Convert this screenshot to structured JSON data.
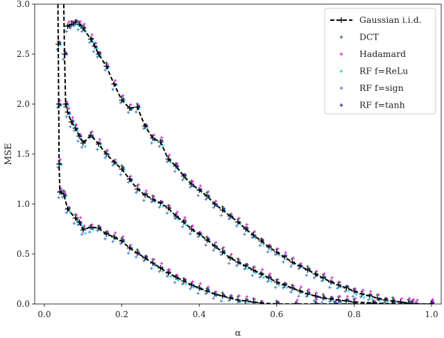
{
  "chart_data": {
    "type": "scatter",
    "title": "",
    "xlabel": "α",
    "ylabel": "MSE",
    "xlim": [
      -0.025,
      1.025
    ],
    "ylim": [
      0,
      3.0
    ],
    "xticks": [
      "0.0",
      "0.2",
      "0.4",
      "0.6",
      "0.8",
      "1.0"
    ],
    "yticks": [
      "0.0",
      "0.5",
      "1.0",
      "1.5",
      "2.0",
      "2.5",
      "3.0"
    ],
    "grid": false,
    "legend_position": "top-right",
    "series": [
      {
        "name": "Gaussian i.i.d.",
        "style": "dashed-line-plus",
        "color": "#000000",
        "curves": [
          [
            [
              0.035,
              3.0
            ],
            [
              0.036,
              2.6
            ],
            [
              0.037,
              2.0
            ],
            [
              0.038,
              1.4
            ],
            [
              0.04,
              1.12
            ],
            [
              0.05,
              1.1
            ],
            [
              0.06,
              0.95
            ],
            [
              0.08,
              0.86
            ],
            [
              0.09,
              0.82
            ],
            [
              0.1,
              0.74
            ],
            [
              0.12,
              0.77
            ],
            [
              0.14,
              0.76
            ],
            [
              0.16,
              0.7
            ],
            [
              0.18,
              0.67
            ],
            [
              0.2,
              0.63
            ],
            [
              0.22,
              0.56
            ],
            [
              0.24,
              0.51
            ],
            [
              0.26,
              0.46
            ],
            [
              0.28,
              0.41
            ],
            [
              0.3,
              0.36
            ],
            [
              0.32,
              0.31
            ],
            [
              0.34,
              0.27
            ],
            [
              0.36,
              0.23
            ],
            [
              0.38,
              0.19
            ],
            [
              0.4,
              0.16
            ],
            [
              0.42,
              0.13
            ],
            [
              0.44,
              0.1
            ],
            [
              0.46,
              0.08
            ],
            [
              0.48,
              0.06
            ],
            [
              0.5,
              0.04
            ],
            [
              0.52,
              0.03
            ],
            [
              0.54,
              0.02
            ],
            [
              0.56,
              0.01
            ],
            [
              0.6,
              0.0
            ],
            [
              0.65,
              0.0
            ],
            [
              0.7,
              0.0
            ],
            [
              0.75,
              0.0
            ],
            [
              0.8,
              0.0
            ],
            [
              0.85,
              0.0
            ],
            [
              0.9,
              0.0
            ],
            [
              0.95,
              0.0
            ],
            [
              1.0,
              0.0
            ]
          ],
          [
            [
              0.05,
              3.0
            ],
            [
              0.052,
              2.5
            ],
            [
              0.055,
              2.0
            ],
            [
              0.06,
              1.92
            ],
            [
              0.07,
              1.82
            ],
            [
              0.08,
              1.76
            ],
            [
              0.09,
              1.68
            ],
            [
              0.1,
              1.61
            ],
            [
              0.12,
              1.69
            ],
            [
              0.14,
              1.6
            ],
            [
              0.16,
              1.5
            ],
            [
              0.18,
              1.42
            ],
            [
              0.2,
              1.35
            ],
            [
              0.22,
              1.25
            ],
            [
              0.24,
              1.15
            ],
            [
              0.26,
              1.09
            ],
            [
              0.28,
              1.05
            ],
            [
              0.3,
              1.01
            ],
            [
              0.32,
              0.96
            ],
            [
              0.34,
              0.88
            ],
            [
              0.36,
              0.82
            ],
            [
              0.38,
              0.75
            ],
            [
              0.4,
              0.7
            ],
            [
              0.42,
              0.64
            ],
            [
              0.44,
              0.58
            ],
            [
              0.46,
              0.52
            ],
            [
              0.48,
              0.46
            ],
            [
              0.5,
              0.42
            ],
            [
              0.52,
              0.38
            ],
            [
              0.54,
              0.34
            ],
            [
              0.56,
              0.3
            ],
            [
              0.58,
              0.26
            ],
            [
              0.6,
              0.22
            ],
            [
              0.62,
              0.19
            ],
            [
              0.64,
              0.16
            ],
            [
              0.66,
              0.13
            ],
            [
              0.68,
              0.1
            ],
            [
              0.7,
              0.08
            ],
            [
              0.72,
              0.06
            ],
            [
              0.74,
              0.05
            ],
            [
              0.76,
              0.04
            ],
            [
              0.78,
              0.03
            ],
            [
              0.8,
              0.02
            ],
            [
              0.85,
              0.01
            ],
            [
              0.9,
              0.0
            ],
            [
              0.95,
              0.0
            ],
            [
              1.0,
              0.0
            ]
          ],
          [
            [
              0.06,
              2.78
            ],
            [
              0.07,
              2.8
            ],
            [
              0.08,
              2.82
            ],
            [
              0.09,
              2.8
            ],
            [
              0.1,
              2.76
            ],
            [
              0.12,
              2.65
            ],
            [
              0.13,
              2.58
            ],
            [
              0.14,
              2.5
            ],
            [
              0.16,
              2.38
            ],
            [
              0.18,
              2.2
            ],
            [
              0.2,
              2.04
            ],
            [
              0.22,
              1.96
            ],
            [
              0.24,
              1.97
            ],
            [
              0.26,
              1.78
            ],
            [
              0.28,
              1.66
            ],
            [
              0.3,
              1.62
            ],
            [
              0.32,
              1.45
            ],
            [
              0.34,
              1.38
            ],
            [
              0.36,
              1.28
            ],
            [
              0.38,
              1.2
            ],
            [
              0.4,
              1.14
            ],
            [
              0.42,
              1.08
            ],
            [
              0.44,
              1.0
            ],
            [
              0.46,
              0.94
            ],
            [
              0.48,
              0.88
            ],
            [
              0.5,
              0.82
            ],
            [
              0.52,
              0.75
            ],
            [
              0.54,
              0.69
            ],
            [
              0.56,
              0.63
            ],
            [
              0.58,
              0.57
            ],
            [
              0.6,
              0.52
            ],
            [
              0.62,
              0.47
            ],
            [
              0.64,
              0.42
            ],
            [
              0.66,
              0.38
            ],
            [
              0.68,
              0.34
            ],
            [
              0.7,
              0.3
            ],
            [
              0.72,
              0.26
            ],
            [
              0.74,
              0.22
            ],
            [
              0.76,
              0.19
            ],
            [
              0.78,
              0.16
            ],
            [
              0.8,
              0.13
            ],
            [
              0.82,
              0.1
            ],
            [
              0.84,
              0.08
            ],
            [
              0.86,
              0.06
            ],
            [
              0.88,
              0.04
            ],
            [
              0.9,
              0.03
            ],
            [
              0.92,
              0.02
            ],
            [
              0.94,
              0.01
            ],
            [
              0.96,
              0.0
            ],
            [
              1.0,
              0.0
            ]
          ]
        ]
      },
      {
        "name": "DCT",
        "color": "#2e7d32",
        "dy": 0.02,
        "dx": 0.0
      },
      {
        "name": "Hadamard",
        "color": "#e026e0",
        "dy": 0.03,
        "dx": 0.003
      },
      {
        "name": "RF f=ReLu",
        "color": "#1ee0e0",
        "dy": -0.02,
        "dx": 0.006
      },
      {
        "name": "RF f=sign",
        "color": "#4a86c8",
        "dy": -0.04,
        "dx": -0.003
      },
      {
        "name": "RF f=tanh",
        "color": "#2b2b9e",
        "dy": 0.0,
        "dx": 0.004
      }
    ]
  }
}
